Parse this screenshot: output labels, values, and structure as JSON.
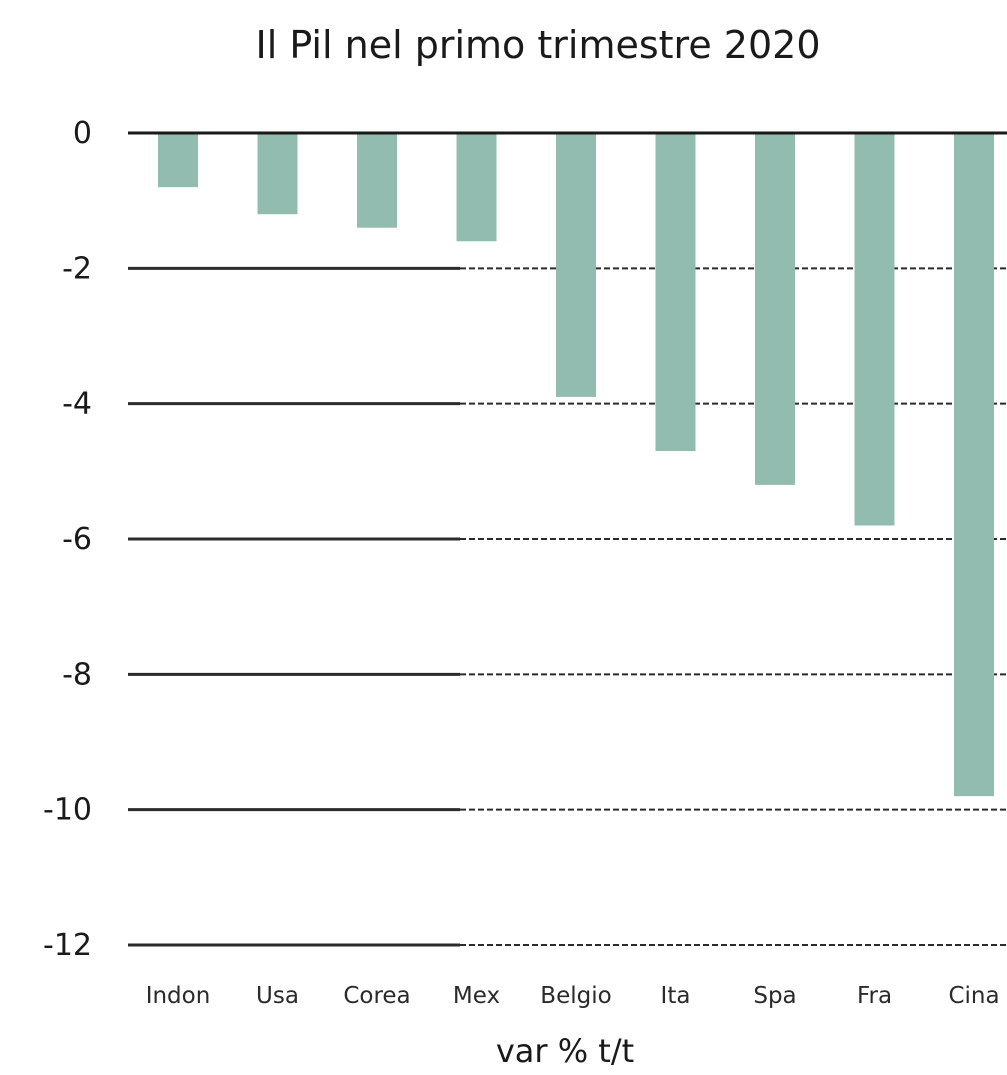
{
  "chart_data": {
    "type": "bar",
    "title": "Il Pil nel primo trimestre 2020",
    "xlabel": "var % t/t",
    "ylabel": "",
    "categories": [
      "Indon",
      "Usa",
      "Corea",
      "Mex",
      "Belgio",
      "Ita",
      "Spa",
      "Fra",
      "Cina"
    ],
    "values": [
      -0.8,
      -1.2,
      -1.4,
      -1.6,
      -3.9,
      -4.7,
      -5.2,
      -5.8,
      -9.8
    ],
    "ylim": [
      -12,
      0
    ],
    "yticks": [
      "0",
      "-2",
      "-4",
      "-6",
      "-8",
      "-10",
      "-12"
    ],
    "grid": true,
    "bar_color": "#93bcb1"
  }
}
